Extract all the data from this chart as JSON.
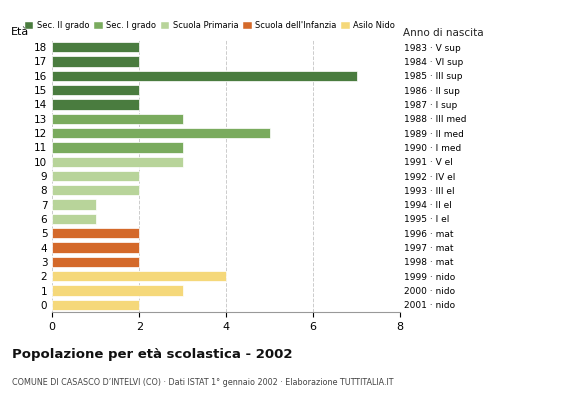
{
  "ages": [
    18,
    17,
    16,
    15,
    14,
    13,
    12,
    11,
    10,
    9,
    8,
    7,
    6,
    5,
    4,
    3,
    2,
    1,
    0
  ],
  "values": [
    2,
    2,
    7,
    2,
    2,
    3,
    5,
    3,
    3,
    2,
    2,
    1,
    1,
    2,
    2,
    2,
    4,
    3,
    2
  ],
  "categories": [
    "Sec. II grado",
    "Sec. II grado",
    "Sec. II grado",
    "Sec. II grado",
    "Sec. II grado",
    "Sec. I grado",
    "Sec. I grado",
    "Sec. I grado",
    "Scuola Primaria",
    "Scuola Primaria",
    "Scuola Primaria",
    "Scuola Primaria",
    "Scuola Primaria",
    "Scuola dell'Infanzia",
    "Scuola dell'Infanzia",
    "Scuola dell'Infanzia",
    "Asilo Nido",
    "Asilo Nido",
    "Asilo Nido"
  ],
  "right_labels": [
    "1983 · V sup",
    "1984 · VI sup",
    "1985 · III sup",
    "1986 · II sup",
    "1987 · I sup",
    "1988 · III med",
    "1989 · II med",
    "1990 · I med",
    "1991 · V el",
    "1992 · IV el",
    "1993 · III el",
    "1994 · II el",
    "1995 · I el",
    "1996 · mat",
    "1997 · mat",
    "1998 · mat",
    "1999 · nido",
    "2000 · nido",
    "2001 · nido"
  ],
  "colors": {
    "Sec. II grado": "#4a7c3f",
    "Sec. I grado": "#7aab5e",
    "Scuola Primaria": "#b8d49a",
    "Scuola dell'Infanzia": "#d4692a",
    "Asilo Nido": "#f5d87a"
  },
  "legend_order": [
    "Sec. II grado",
    "Sec. I grado",
    "Scuola Primaria",
    "Scuola dell'Infanzia",
    "Asilo Nido"
  ],
  "ylabel_left": "Età",
  "ylabel_right": "Anno di nascita",
  "title": "Popolazione per età scolastica - 2002",
  "subtitle": "COMUNE DI CASASCO D’INTELVI (CO) · Dati ISTAT 1° gennaio 2002 · Elaborazione TUTTITALIA.IT",
  "xlim": [
    0,
    8
  ],
  "xticks": [
    0,
    2,
    4,
    6,
    8
  ],
  "background_color": "#ffffff",
  "grid_color": "#cccccc",
  "bar_height": 0.72
}
